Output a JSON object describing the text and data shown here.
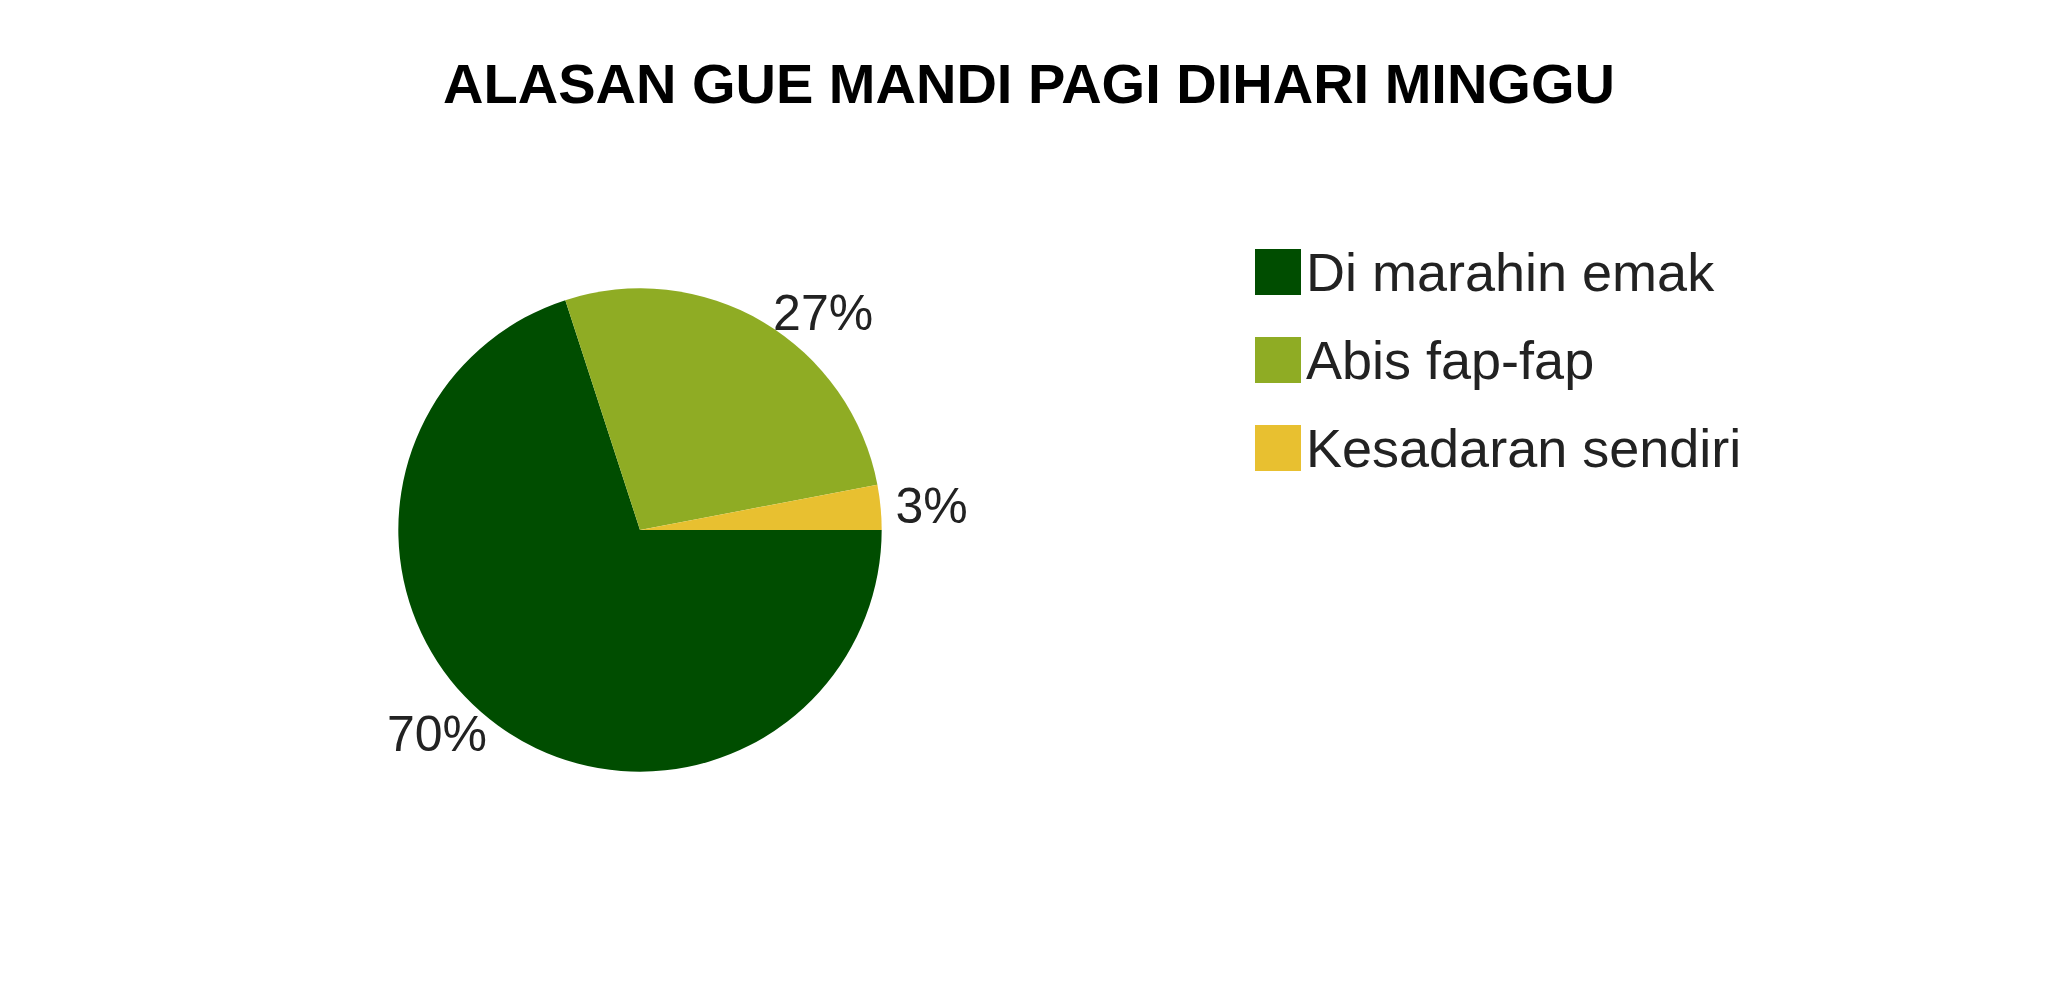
{
  "chart_data": {
    "type": "pie",
    "title": "ALASAN GUE MANDI PAGI DIHARI MINGGU",
    "categories": [
      "Di marahin emak",
      "Abis fap-fap",
      "Kesadaran sendiri"
    ],
    "values": [
      70,
      27,
      3
    ],
    "colors": [
      "#004d00",
      "#8fac24",
      "#e8c030"
    ],
    "value_labels": [
      "70%",
      "27%",
      "3%"
    ],
    "legend": "right"
  }
}
